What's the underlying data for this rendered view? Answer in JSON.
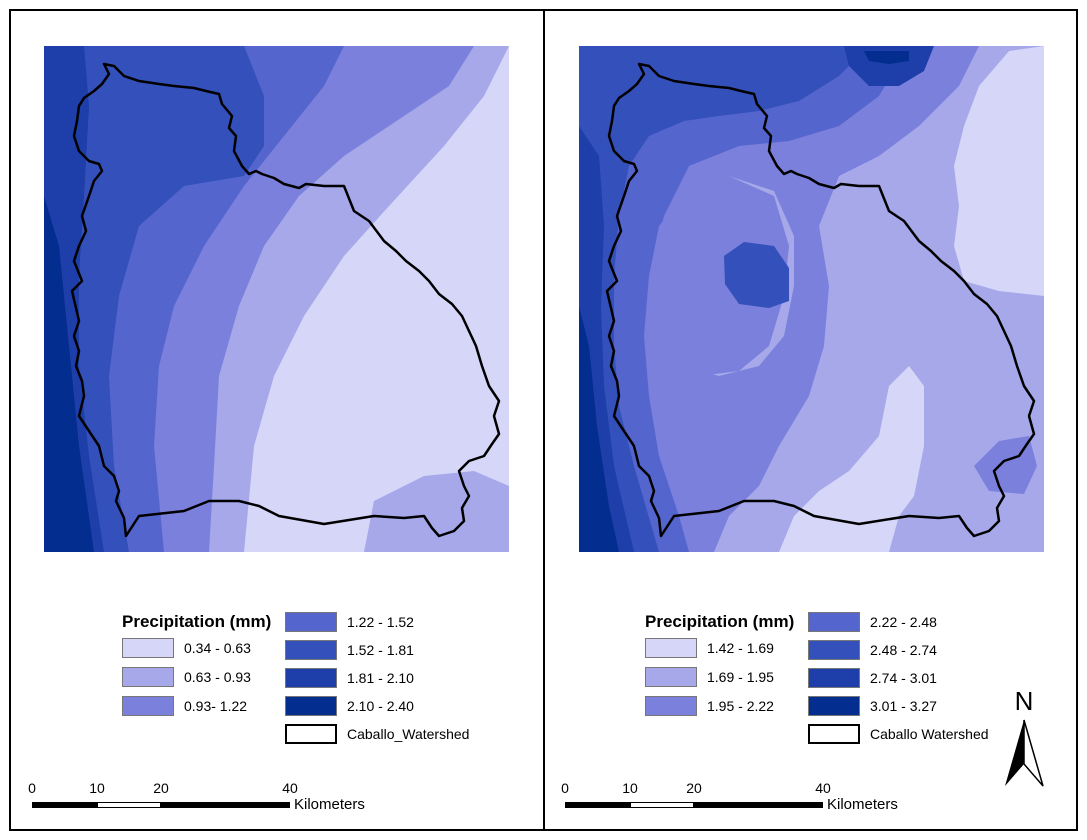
{
  "colors": {
    "c1": "#d6d6f8",
    "c2": "#a6a8ea",
    "c3": "#7a80dc",
    "c4": "#5565ce",
    "c5": "#3450bb",
    "c6": "#1e3ea9",
    "c7": "#032d8e",
    "outline": "#000000"
  },
  "left_panel": {
    "legend": {
      "title": "Precipitation (mm)",
      "classes": [
        {
          "label": "0.34 - 0.63",
          "color": "#d6d6f8"
        },
        {
          "label": "0.63 - 0.93",
          "color": "#a6a8ea"
        },
        {
          "label": "0.93- 1.22",
          "color": "#7a80dc"
        },
        {
          "label": "1.22 - 1.52",
          "color": "#5565ce"
        },
        {
          "label": "1.52 - 1.81",
          "color": "#3450bb"
        },
        {
          "label": "1.81 - 2.10",
          "color": "#1e3ea9"
        },
        {
          "label": "2.10 - 2.40",
          "color": "#032d8e"
        }
      ],
      "boundary_label": "Caballo_Watershed"
    },
    "scale": {
      "ticks": [
        "0",
        "10",
        "20",
        "40"
      ],
      "unit": "Kilometers"
    }
  },
  "right_panel": {
    "legend": {
      "title": "Precipitation (mm)",
      "classes": [
        {
          "label": "1.42 - 1.69",
          "color": "#d6d6f8"
        },
        {
          "label": "1.69 - 1.95",
          "color": "#a6a8ea"
        },
        {
          "label": "1.95 - 2.22",
          "color": "#7a80dc"
        },
        {
          "label": "2.22 - 2.48",
          "color": "#5565ce"
        },
        {
          "label": "2.48 - 2.74",
          "color": "#3450bb"
        },
        {
          "label": "2.74 - 3.01",
          "color": "#1e3ea9"
        },
        {
          "label": "3.01 - 3.27",
          "color": "#032d8e"
        }
      ],
      "boundary_label": "Caballo Watershed"
    },
    "scale": {
      "ticks": [
        "0",
        "10",
        "20",
        "40"
      ],
      "unit": "Kilometers"
    },
    "north_arrow": {
      "label": "N"
    }
  }
}
